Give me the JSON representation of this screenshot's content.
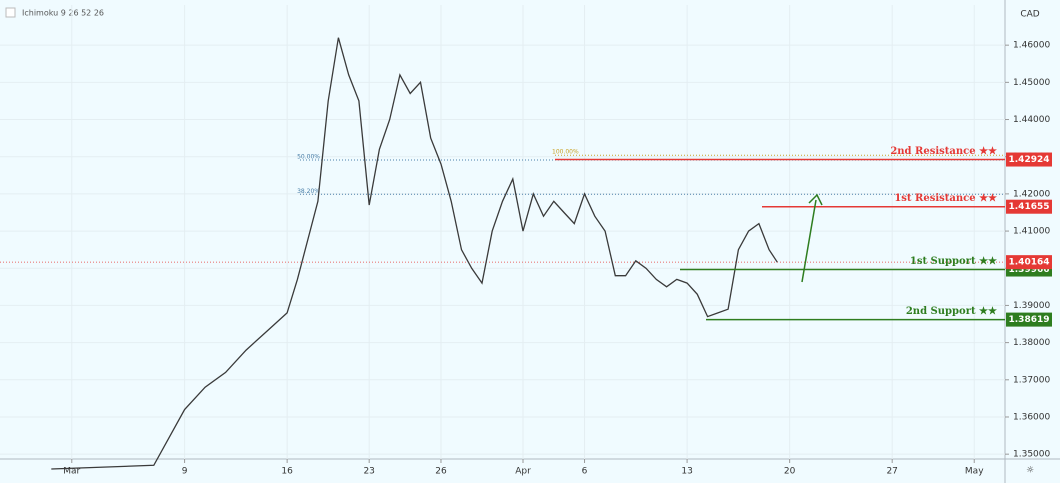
{
  "chart_data": {
    "type": "line",
    "indicator": "Ichimoku 9 26 52 26",
    "currency": "CAD",
    "x": [
      -1,
      4,
      5.5,
      6.5,
      7.5,
      8.5,
      9.5,
      10.5,
      11,
      12,
      12.5,
      13,
      13.5,
      14,
      14.5,
      15,
      15.5,
      16,
      16.5,
      17,
      17.5,
      18,
      18.5,
      19,
      19.5,
      20,
      20.5,
      21,
      21.5,
      22,
      22.5,
      23,
      23.5,
      24,
      24.5,
      25,
      25.5,
      26,
      26.5,
      27,
      27.5,
      28,
      28.5,
      29,
      29.5,
      30,
      30.5,
      31,
      31.5,
      32,
      32.5,
      33,
      33.5,
      34,
      34.4
    ],
    "series": [
      {
        "color": "#3a3a3a",
        "values": [
          1.346,
          1.347,
          1.362,
          1.368,
          1.372,
          1.378,
          1.383,
          1.388,
          1.397,
          1.418,
          1.445,
          1.462,
          1.452,
          1.445,
          1.417,
          1.432,
          1.44,
          1.452,
          1.447,
          1.45,
          1.435,
          1.428,
          1.418,
          1.405,
          1.4,
          1.396,
          1.41,
          1.418,
          1.424,
          1.41,
          1.42,
          1.414,
          1.418,
          1.415,
          1.412,
          1.42,
          1.414,
          1.41,
          1.398,
          1.398,
          1.402,
          1.4,
          1.397,
          1.395,
          1.397,
          1.396,
          1.393,
          1.387,
          1.388,
          1.389,
          1.405,
          1.41,
          1.412,
          1.405,
          1.40164
        ]
      }
    ],
    "xlim": [
      -3.5,
      45.5
    ],
    "xticks": [
      {
        "value": 0,
        "label": "Mar"
      },
      {
        "value": 5.5,
        "label": "9"
      },
      {
        "value": 10.5,
        "label": "16"
      },
      {
        "value": 14.5,
        "label": "23"
      },
      {
        "value": 18,
        "label": "26"
      },
      {
        "value": 22,
        "label": "Apr"
      },
      {
        "value": 25,
        "label": "6"
      },
      {
        "value": 30,
        "label": "13"
      },
      {
        "value": 35,
        "label": "20"
      },
      {
        "value": 40,
        "label": "27"
      },
      {
        "value": 44,
        "label": "May"
      }
    ],
    "ylim": [
      1.3487,
      1.4708
    ],
    "yticks": [
      {
        "value": 1.35,
        "label": "1.35000"
      },
      {
        "value": 1.36,
        "label": "1.36000"
      },
      {
        "value": 1.37,
        "label": "1.37000"
      },
      {
        "value": 1.38,
        "label": "1.38000"
      },
      {
        "value": 1.39,
        "label": "1.39000"
      },
      {
        "value": 1.4,
        "label": "1.40000"
      },
      {
        "value": 1.41,
        "label": "1.41000"
      },
      {
        "value": 1.42,
        "label": "1.42000"
      },
      {
        "value": 1.43,
        "label": "1.43000"
      },
      {
        "value": 1.44,
        "label": "1.44000"
      },
      {
        "value": 1.45,
        "label": "1.45000"
      },
      {
        "value": 1.46,
        "label": "1.46000"
      }
    ],
    "levels": [
      {
        "name": "2nd Resistance ★★",
        "value": 1.42924,
        "color": "#e53935"
      },
      {
        "name": "1st Resistance ★★",
        "value": 1.41655,
        "color": "#e53935"
      },
      {
        "name": "1st Support ★★",
        "value": 1.39966,
        "color": "#2e7d1f"
      },
      {
        "name": "2nd Support ★★",
        "value": 1.38619,
        "color": "#2e7d1f"
      }
    ],
    "current_price": {
      "value": 1.40164,
      "color": "#e53935"
    },
    "fib": [
      {
        "label": "100.00%",
        "value": 1.4304
      },
      {
        "label": "50.00%",
        "value": 1.4291
      },
      {
        "label": "38.20%",
        "value": 1.4199
      }
    ]
  }
}
